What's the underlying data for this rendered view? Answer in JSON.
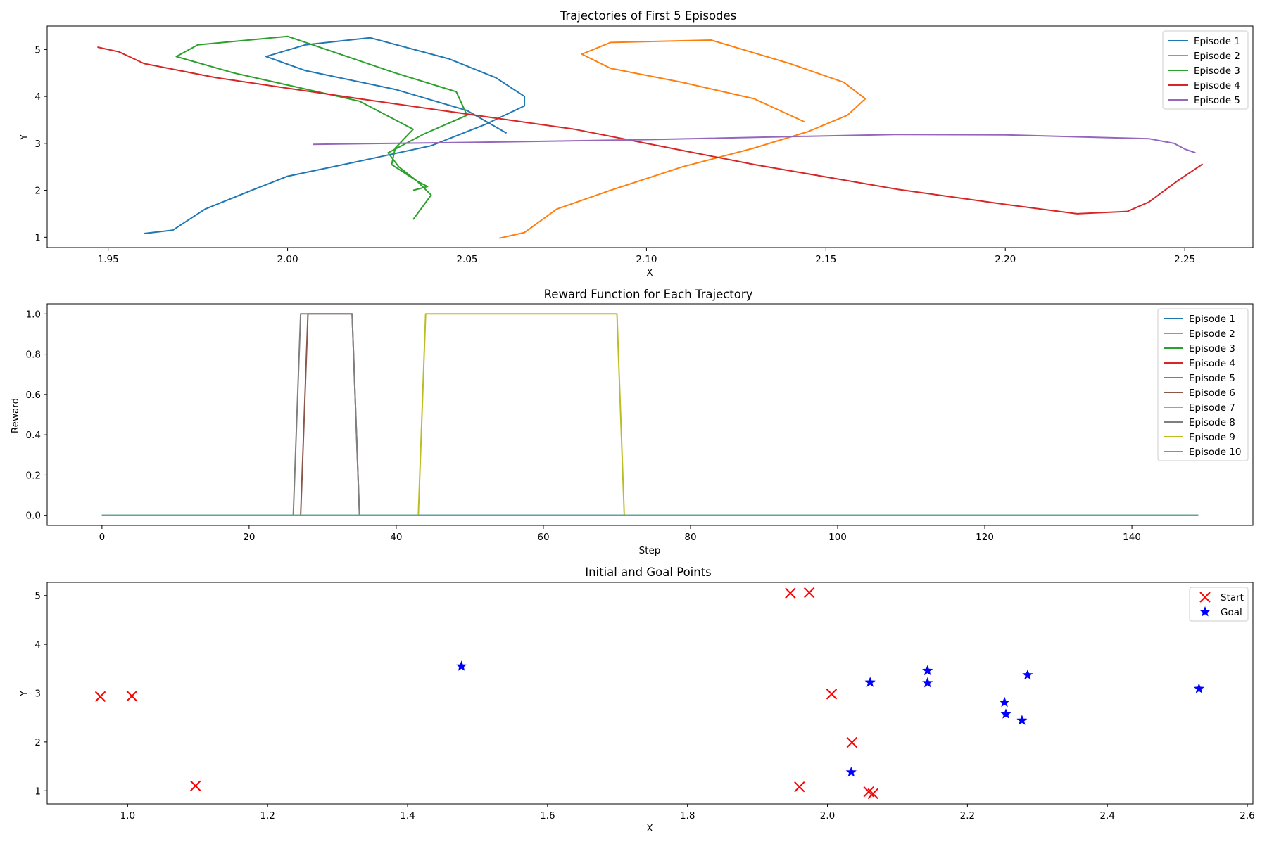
{
  "chart_data": [
    {
      "type": "line",
      "title": "Trajectories of First 5 Episodes",
      "xlabel": "X",
      "ylabel": "Y",
      "xlim": [
        1.933,
        2.269
      ],
      "ylim": [
        0.78,
        5.5
      ],
      "xticks": [
        1.95,
        2.0,
        2.05,
        2.1,
        2.15,
        2.2,
        2.25
      ],
      "xtick_labels": [
        "1.95",
        "2.00",
        "2.05",
        "2.10",
        "2.15",
        "2.20",
        "2.25"
      ],
      "yticks": [
        1,
        2,
        3,
        4,
        5
      ],
      "ytick_labels": [
        "1",
        "2",
        "3",
        "4",
        "5"
      ],
      "legend": "top-right",
      "series": [
        {
          "name": "Episode 1",
          "color": "#1f77b4",
          "points": [
            [
              1.96,
              1.08
            ],
            [
              1.968,
              1.15
            ],
            [
              1.977,
              1.6
            ],
            [
              1.99,
              2.0
            ],
            [
              2.0,
              2.3
            ],
            [
              2.02,
              2.62
            ],
            [
              2.04,
              2.95
            ],
            [
              2.055,
              3.4
            ],
            [
              2.066,
              3.8
            ],
            [
              2.066,
              4.0
            ],
            [
              2.058,
              4.4
            ],
            [
              2.045,
              4.8
            ],
            [
              2.023,
              5.25
            ],
            [
              2.005,
              5.1
            ],
            [
              1.994,
              4.85
            ],
            [
              2.005,
              4.55
            ],
            [
              2.03,
              4.15
            ],
            [
              2.05,
              3.7
            ],
            [
              2.061,
              3.22
            ]
          ]
        },
        {
          "name": "Episode 2",
          "color": "#ff7f0e",
          "points": [
            [
              2.059,
              0.98
            ],
            [
              2.066,
              1.1
            ],
            [
              2.075,
              1.6
            ],
            [
              2.09,
              2.0
            ],
            [
              2.11,
              2.5
            ],
            [
              2.13,
              2.9
            ],
            [
              2.145,
              3.25
            ],
            [
              2.156,
              3.6
            ],
            [
              2.161,
              3.95
            ],
            [
              2.155,
              4.3
            ],
            [
              2.14,
              4.7
            ],
            [
              2.118,
              5.2
            ],
            [
              2.09,
              5.15
            ],
            [
              2.082,
              4.9
            ],
            [
              2.09,
              4.6
            ],
            [
              2.11,
              4.3
            ],
            [
              2.13,
              3.95
            ],
            [
              2.144,
              3.46
            ]
          ]
        },
        {
          "name": "Episode 3",
          "color": "#2ca02c",
          "points": [
            [
              2.035,
              1.38
            ],
            [
              2.04,
              1.9
            ],
            [
              2.036,
              2.2
            ],
            [
              2.031,
              2.5
            ],
            [
              2.028,
              2.8
            ],
            [
              2.038,
              3.2
            ],
            [
              2.05,
              3.6
            ],
            [
              2.047,
              4.1
            ],
            [
              2.03,
              4.5
            ],
            [
              2.0,
              5.28
            ],
            [
              1.975,
              5.1
            ],
            [
              1.969,
              4.85
            ],
            [
              1.985,
              4.5
            ],
            [
              2.02,
              3.9
            ],
            [
              2.035,
              3.3
            ],
            [
              2.03,
              2.9
            ],
            [
              2.029,
              2.55
            ],
            [
              2.036,
              2.2
            ],
            [
              2.039,
              2.08
            ],
            [
              2.035,
              2.0
            ]
          ]
        },
        {
          "name": "Episode 4",
          "color": "#d62728",
          "points": [
            [
              1.947,
              5.05
            ],
            [
              1.953,
              4.95
            ],
            [
              1.96,
              4.7
            ],
            [
              1.98,
              4.4
            ],
            [
              2.02,
              3.95
            ],
            [
              2.08,
              3.3
            ],
            [
              2.13,
              2.55
            ],
            [
              2.17,
              2.02
            ],
            [
              2.2,
              1.7
            ],
            [
              2.22,
              1.5
            ],
            [
              2.234,
              1.55
            ],
            [
              2.24,
              1.75
            ],
            [
              2.248,
              2.2
            ],
            [
              2.255,
              2.56
            ]
          ]
        },
        {
          "name": "Episode 5",
          "color": "#9467bd",
          "points": [
            [
              2.007,
              2.98
            ],
            [
              2.05,
              3.02
            ],
            [
              2.1,
              3.08
            ],
            [
              2.15,
              3.16
            ],
            [
              2.17,
              3.19
            ],
            [
              2.2,
              3.18
            ],
            [
              2.24,
              3.1
            ],
            [
              2.247,
              3.0
            ],
            [
              2.25,
              2.88
            ],
            [
              2.253,
              2.8
            ]
          ]
        }
      ]
    },
    {
      "type": "line",
      "title": "Reward Function for Each Trajectory",
      "xlabel": "Step",
      "ylabel": "Reward",
      "xlim": [
        -7.45,
        156.45
      ],
      "ylim": [
        -0.05,
        1.05
      ],
      "xticks": [
        0,
        20,
        40,
        60,
        80,
        100,
        120,
        140
      ],
      "xtick_labels": [
        "0",
        "20",
        "40",
        "60",
        "80",
        "100",
        "120",
        "140"
      ],
      "yticks": [
        0.0,
        0.2,
        0.4,
        0.6,
        0.8,
        1.0
      ],
      "ytick_labels": [
        "0.0",
        "0.2",
        "0.4",
        "0.6",
        "0.8",
        "1.0"
      ],
      "legend": "top-right",
      "series": [
        {
          "name": "Episode 1",
          "color": "#1f77b4",
          "points": [
            [
              0,
              0
            ],
            [
              149,
              0
            ]
          ]
        },
        {
          "name": "Episode 2",
          "color": "#ff7f0e",
          "points": [
            [
              0,
              0
            ],
            [
              149,
              0
            ]
          ]
        },
        {
          "name": "Episode 3",
          "color": "#2ca02c",
          "points": [
            [
              0,
              0
            ],
            [
              149,
              0
            ]
          ]
        },
        {
          "name": "Episode 4",
          "color": "#d62728",
          "points": [
            [
              0,
              0
            ],
            [
              149,
              0
            ]
          ]
        },
        {
          "name": "Episode 5",
          "color": "#9467bd",
          "points": [
            [
              0,
              0
            ],
            [
              149,
              0
            ]
          ]
        },
        {
          "name": "Episode 6",
          "color": "#8c564b",
          "points": [
            [
              0,
              0
            ],
            [
              27,
              0
            ],
            [
              28,
              1
            ],
            [
              34,
              1
            ],
            [
              35,
              0
            ],
            [
              149,
              0
            ]
          ]
        },
        {
          "name": "Episode 7",
          "color": "#e377c2",
          "points": [
            [
              0,
              0
            ],
            [
              149,
              0
            ]
          ]
        },
        {
          "name": "Episode 8",
          "color": "#7f7f7f",
          "points": [
            [
              0,
              0
            ],
            [
              26,
              0
            ],
            [
              27,
              1
            ],
            [
              34,
              1
            ],
            [
              35,
              0
            ],
            [
              149,
              0
            ]
          ]
        },
        {
          "name": "Episode 9",
          "color": "#bcbd22",
          "points": [
            [
              0,
              0
            ],
            [
              43,
              0
            ],
            [
              44,
              1
            ],
            [
              70,
              1
            ],
            [
              71,
              0
            ],
            [
              149,
              0
            ]
          ]
        },
        {
          "name": "Episode 10",
          "color": "#17becf",
          "points": [
            [
              0,
              0
            ],
            [
              149,
              0
            ]
          ]
        }
      ]
    },
    {
      "type": "scatter",
      "title": "Initial and Goal Points",
      "xlabel": "X",
      "ylabel": "Y",
      "xlim": [
        0.885,
        2.608
      ],
      "ylim": [
        0.73,
        5.27
      ],
      "xticks": [
        1.0,
        1.2,
        1.4,
        1.6,
        1.8,
        2.0,
        2.2,
        2.4,
        2.6
      ],
      "xtick_labels": [
        "1.0",
        "1.2",
        "1.4",
        "1.6",
        "1.8",
        "2.0",
        "2.2",
        "2.4",
        "2.6"
      ],
      "yticks": [
        1,
        2,
        3,
        4,
        5
      ],
      "ytick_labels": [
        "1",
        "2",
        "3",
        "4",
        "5"
      ],
      "legend": "top-right",
      "series": [
        {
          "name": "Start",
          "color": "#ff0000",
          "marker": "x",
          "points": [
            [
              0.961,
              2.93
            ],
            [
              1.006,
              2.94
            ],
            [
              1.097,
              1.1
            ],
            [
              1.947,
              5.05
            ],
            [
              1.974,
              5.06
            ],
            [
              1.96,
              1.08
            ],
            [
              2.006,
              2.98
            ],
            [
              2.035,
              1.99
            ],
            [
              2.059,
              0.98
            ],
            [
              2.065,
              0.94
            ]
          ]
        },
        {
          "name": "Goal",
          "color": "#0000ff",
          "marker": "star",
          "points": [
            [
              1.477,
              3.55
            ],
            [
              2.034,
              1.38
            ],
            [
              2.061,
              3.22
            ],
            [
              2.143,
              3.46
            ],
            [
              2.143,
              3.21
            ],
            [
              2.253,
              2.81
            ],
            [
              2.255,
              2.57
            ],
            [
              2.278,
              2.44
            ],
            [
              2.286,
              3.37
            ],
            [
              2.531,
              3.09
            ]
          ]
        }
      ]
    }
  ]
}
